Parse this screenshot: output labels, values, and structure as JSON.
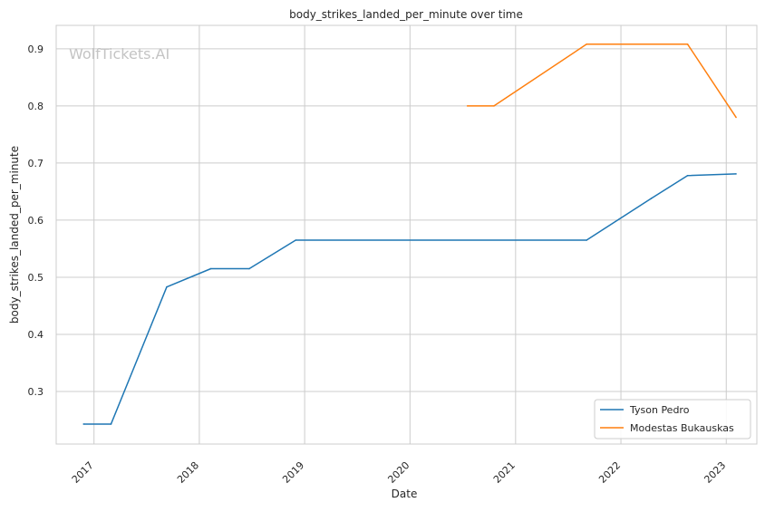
{
  "chart_data": {
    "type": "line",
    "title": "body_strikes_landed_per_minute over time",
    "xlabel": "Date",
    "ylabel": "body_strikes_landed_per_minute",
    "watermark": "WolfTickets.AI",
    "x_ticks": [
      "2017",
      "2018",
      "2019",
      "2020",
      "2021",
      "2022",
      "2023"
    ],
    "y_ticks": [
      "0.3",
      "0.4",
      "0.5",
      "0.6",
      "0.7",
      "0.8",
      "0.9"
    ],
    "xlim": [
      "2016-08-23",
      "2023-04-17"
    ],
    "ylim": [
      0.208,
      0.941
    ],
    "grid": true,
    "legend_position": "lower-right",
    "series": [
      {
        "name": "Tyson Pedro",
        "color": "#1f77b4",
        "points": [
          [
            "2016-11-26",
            0.243
          ],
          [
            "2017-03-01",
            0.243
          ],
          [
            "2017-09-10",
            0.483
          ],
          [
            "2018-02-10",
            0.515
          ],
          [
            "2018-06-23",
            0.515
          ],
          [
            "2018-12-01",
            0.565
          ],
          [
            "2021-09-04",
            0.565
          ],
          [
            "2022-04-16",
            0.638
          ],
          [
            "2022-08-20",
            0.678
          ],
          [
            "2023-02-04",
            0.681
          ]
        ]
      },
      {
        "name": "Modestas Bukauskas",
        "color": "#ff7f0e",
        "points": [
          [
            "2020-07-18",
            0.8
          ],
          [
            "2020-10-18",
            0.8
          ],
          [
            "2021-09-04",
            0.908
          ],
          [
            "2022-08-20",
            0.908
          ],
          [
            "2023-02-04",
            0.78
          ]
        ]
      }
    ]
  }
}
